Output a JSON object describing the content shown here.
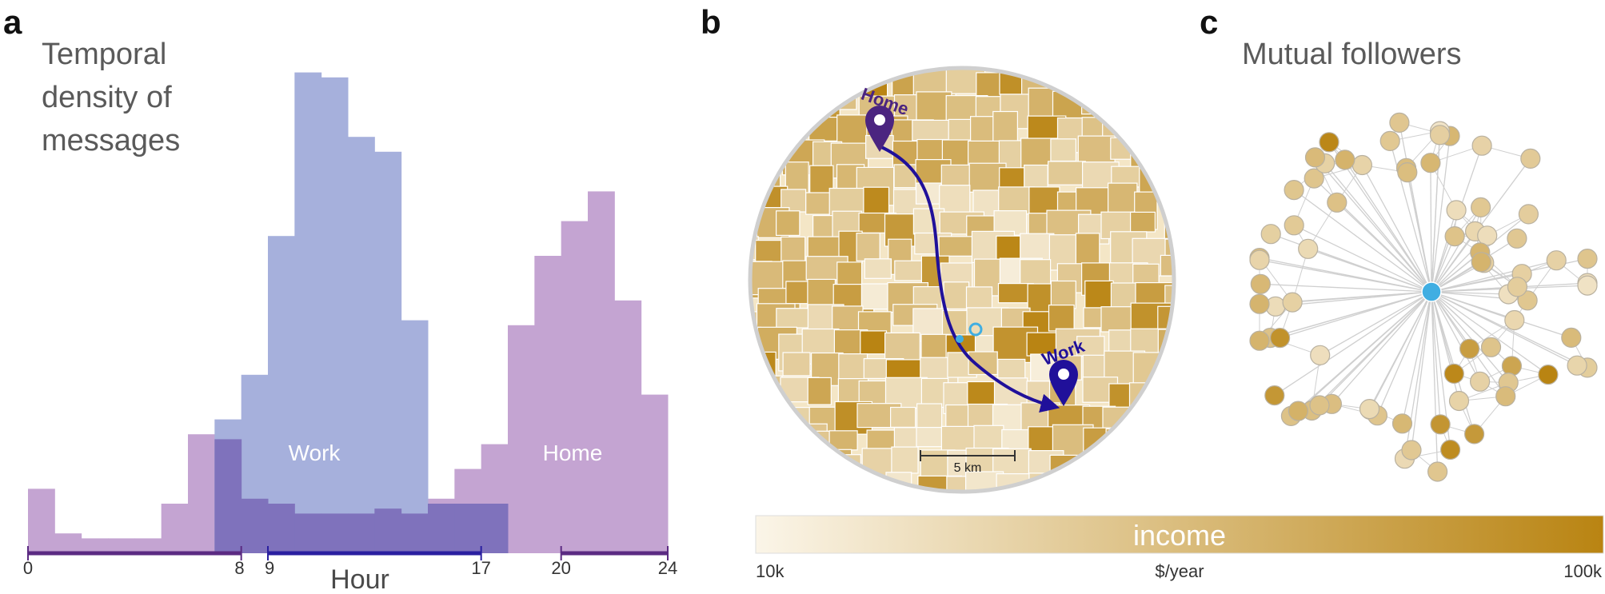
{
  "colors": {
    "work_series": "#a6b0dc",
    "home_series": "#c4a4d2",
    "overlap": "#7f72bc",
    "work_axis": "#2a1fa0",
    "home_axis": "#5b2a82",
    "income_low": "#fbf5e8",
    "income_high": "#b98412",
    "hub_node": "#40aee2",
    "home_pin": "#4b2480",
    "work_pin": "#20109a",
    "edge": "#cfcfcf"
  },
  "panel_a": {
    "letter": "a",
    "title_lines": [
      "Temporal",
      "density of",
      "messages"
    ],
    "x_axis_label": "Hour",
    "tick_labels": [
      "0",
      "8",
      "9",
      "17",
      "20",
      "24"
    ],
    "work_label": "Work",
    "home_label": "Home"
  },
  "panel_b": {
    "letter": "b",
    "home_label": "Home",
    "work_label": "Work",
    "scale_label": "5 km",
    "colorbar": {
      "title": "income",
      "min_label": "10k",
      "unit_label": "$/year",
      "max_label": "100k"
    },
    "icons": [
      "home-pin-icon",
      "work-pin-icon",
      "bird-icon"
    ]
  },
  "panel_c": {
    "letter": "c",
    "title": "Mutual followers"
  },
  "chart_data": {
    "type": "area",
    "xlabel": "Hour",
    "ylabel": "",
    "xlim": [
      0,
      24
    ],
    "x_ticks": [
      0,
      8,
      9,
      17,
      20,
      24
    ],
    "bin_width_hours": 1,
    "series": [
      {
        "name": "Work",
        "values": [
          0,
          0,
          0,
          0,
          0,
          0,
          0,
          0.27,
          0.36,
          0.64,
          0.97,
          0.96,
          0.84,
          0.81,
          0.47,
          0.1,
          0.1,
          0.1,
          0,
          0,
          0,
          0,
          0,
          0
        ]
      },
      {
        "name": "Home",
        "values": [
          0.13,
          0.04,
          0.03,
          0.03,
          0.03,
          0.1,
          0.24,
          0.23,
          0.11,
          0.1,
          0.08,
          0.08,
          0.08,
          0.09,
          0.08,
          0.11,
          0.17,
          0.22,
          0.46,
          0.6,
          0.67,
          0.73,
          0.51,
          0.32
        ]
      }
    ]
  }
}
